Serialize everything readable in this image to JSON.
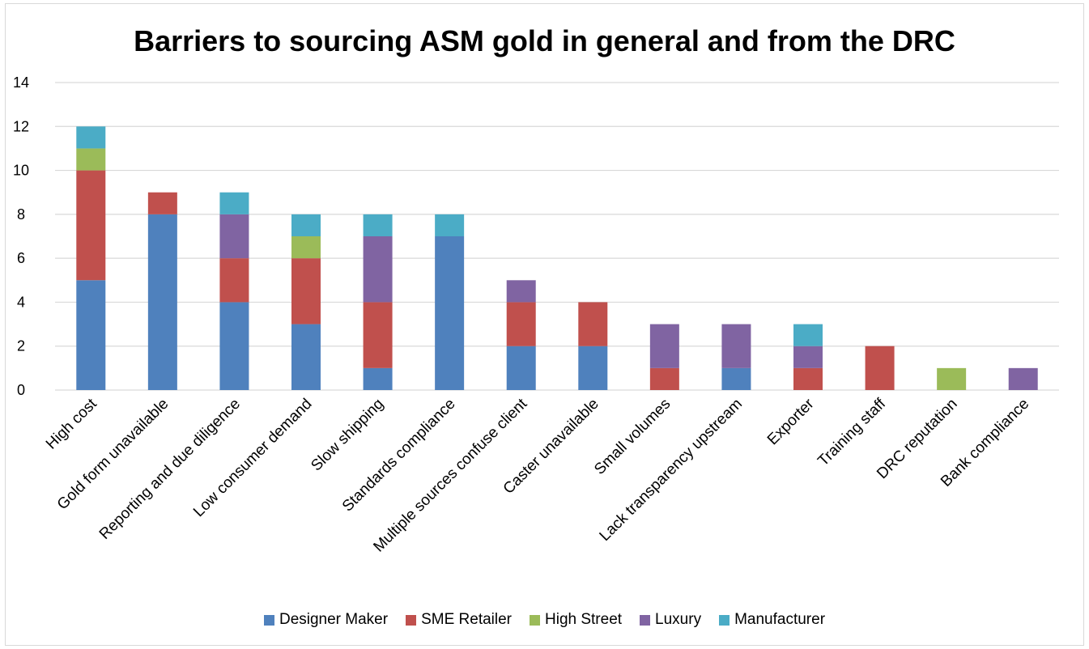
{
  "chart_data": {
    "type": "bar",
    "stacked": true,
    "title": "Barriers to sourcing ASM gold in general and from the DRC",
    "xlabel": "",
    "ylabel": "",
    "ylim": [
      0,
      14
    ],
    "yticks": [
      0,
      2,
      4,
      6,
      8,
      10,
      12,
      14
    ],
    "grid": true,
    "legend_position": "bottom",
    "categories": [
      "High cost",
      "Gold form unavailable",
      "Reporting and due diligence",
      "Low consumer demand",
      "Slow shipping",
      "Standards compliance",
      "Multiple sources confuse client",
      "Caster unavailable",
      "Small volumes",
      "Lack transparency upstream",
      "Exporter",
      "Training staff",
      "DRC reputation",
      "Bank compliance"
    ],
    "series": [
      {
        "name": "Designer Maker",
        "color": "#4f81bd",
        "values": [
          5,
          8,
          4,
          3,
          1,
          7,
          2,
          2,
          0,
          1,
          0,
          0,
          0,
          0
        ]
      },
      {
        "name": "SME Retailer",
        "color": "#c0504d",
        "values": [
          5,
          1,
          2,
          3,
          3,
          0,
          2,
          2,
          1,
          0,
          1,
          2,
          0,
          0
        ]
      },
      {
        "name": "High Street",
        "color": "#9bbb59",
        "values": [
          1,
          0,
          0,
          1,
          0,
          0,
          0,
          0,
          0,
          0,
          0,
          0,
          1,
          0
        ]
      },
      {
        "name": "Luxury",
        "color": "#8064a2",
        "values": [
          0,
          0,
          2,
          0,
          3,
          0,
          1,
          0,
          2,
          2,
          1,
          0,
          0,
          1
        ]
      },
      {
        "name": "Manufacturer",
        "color": "#4bacc6",
        "values": [
          1,
          0,
          1,
          1,
          1,
          1,
          0,
          0,
          0,
          0,
          1,
          0,
          0,
          0
        ]
      }
    ]
  }
}
